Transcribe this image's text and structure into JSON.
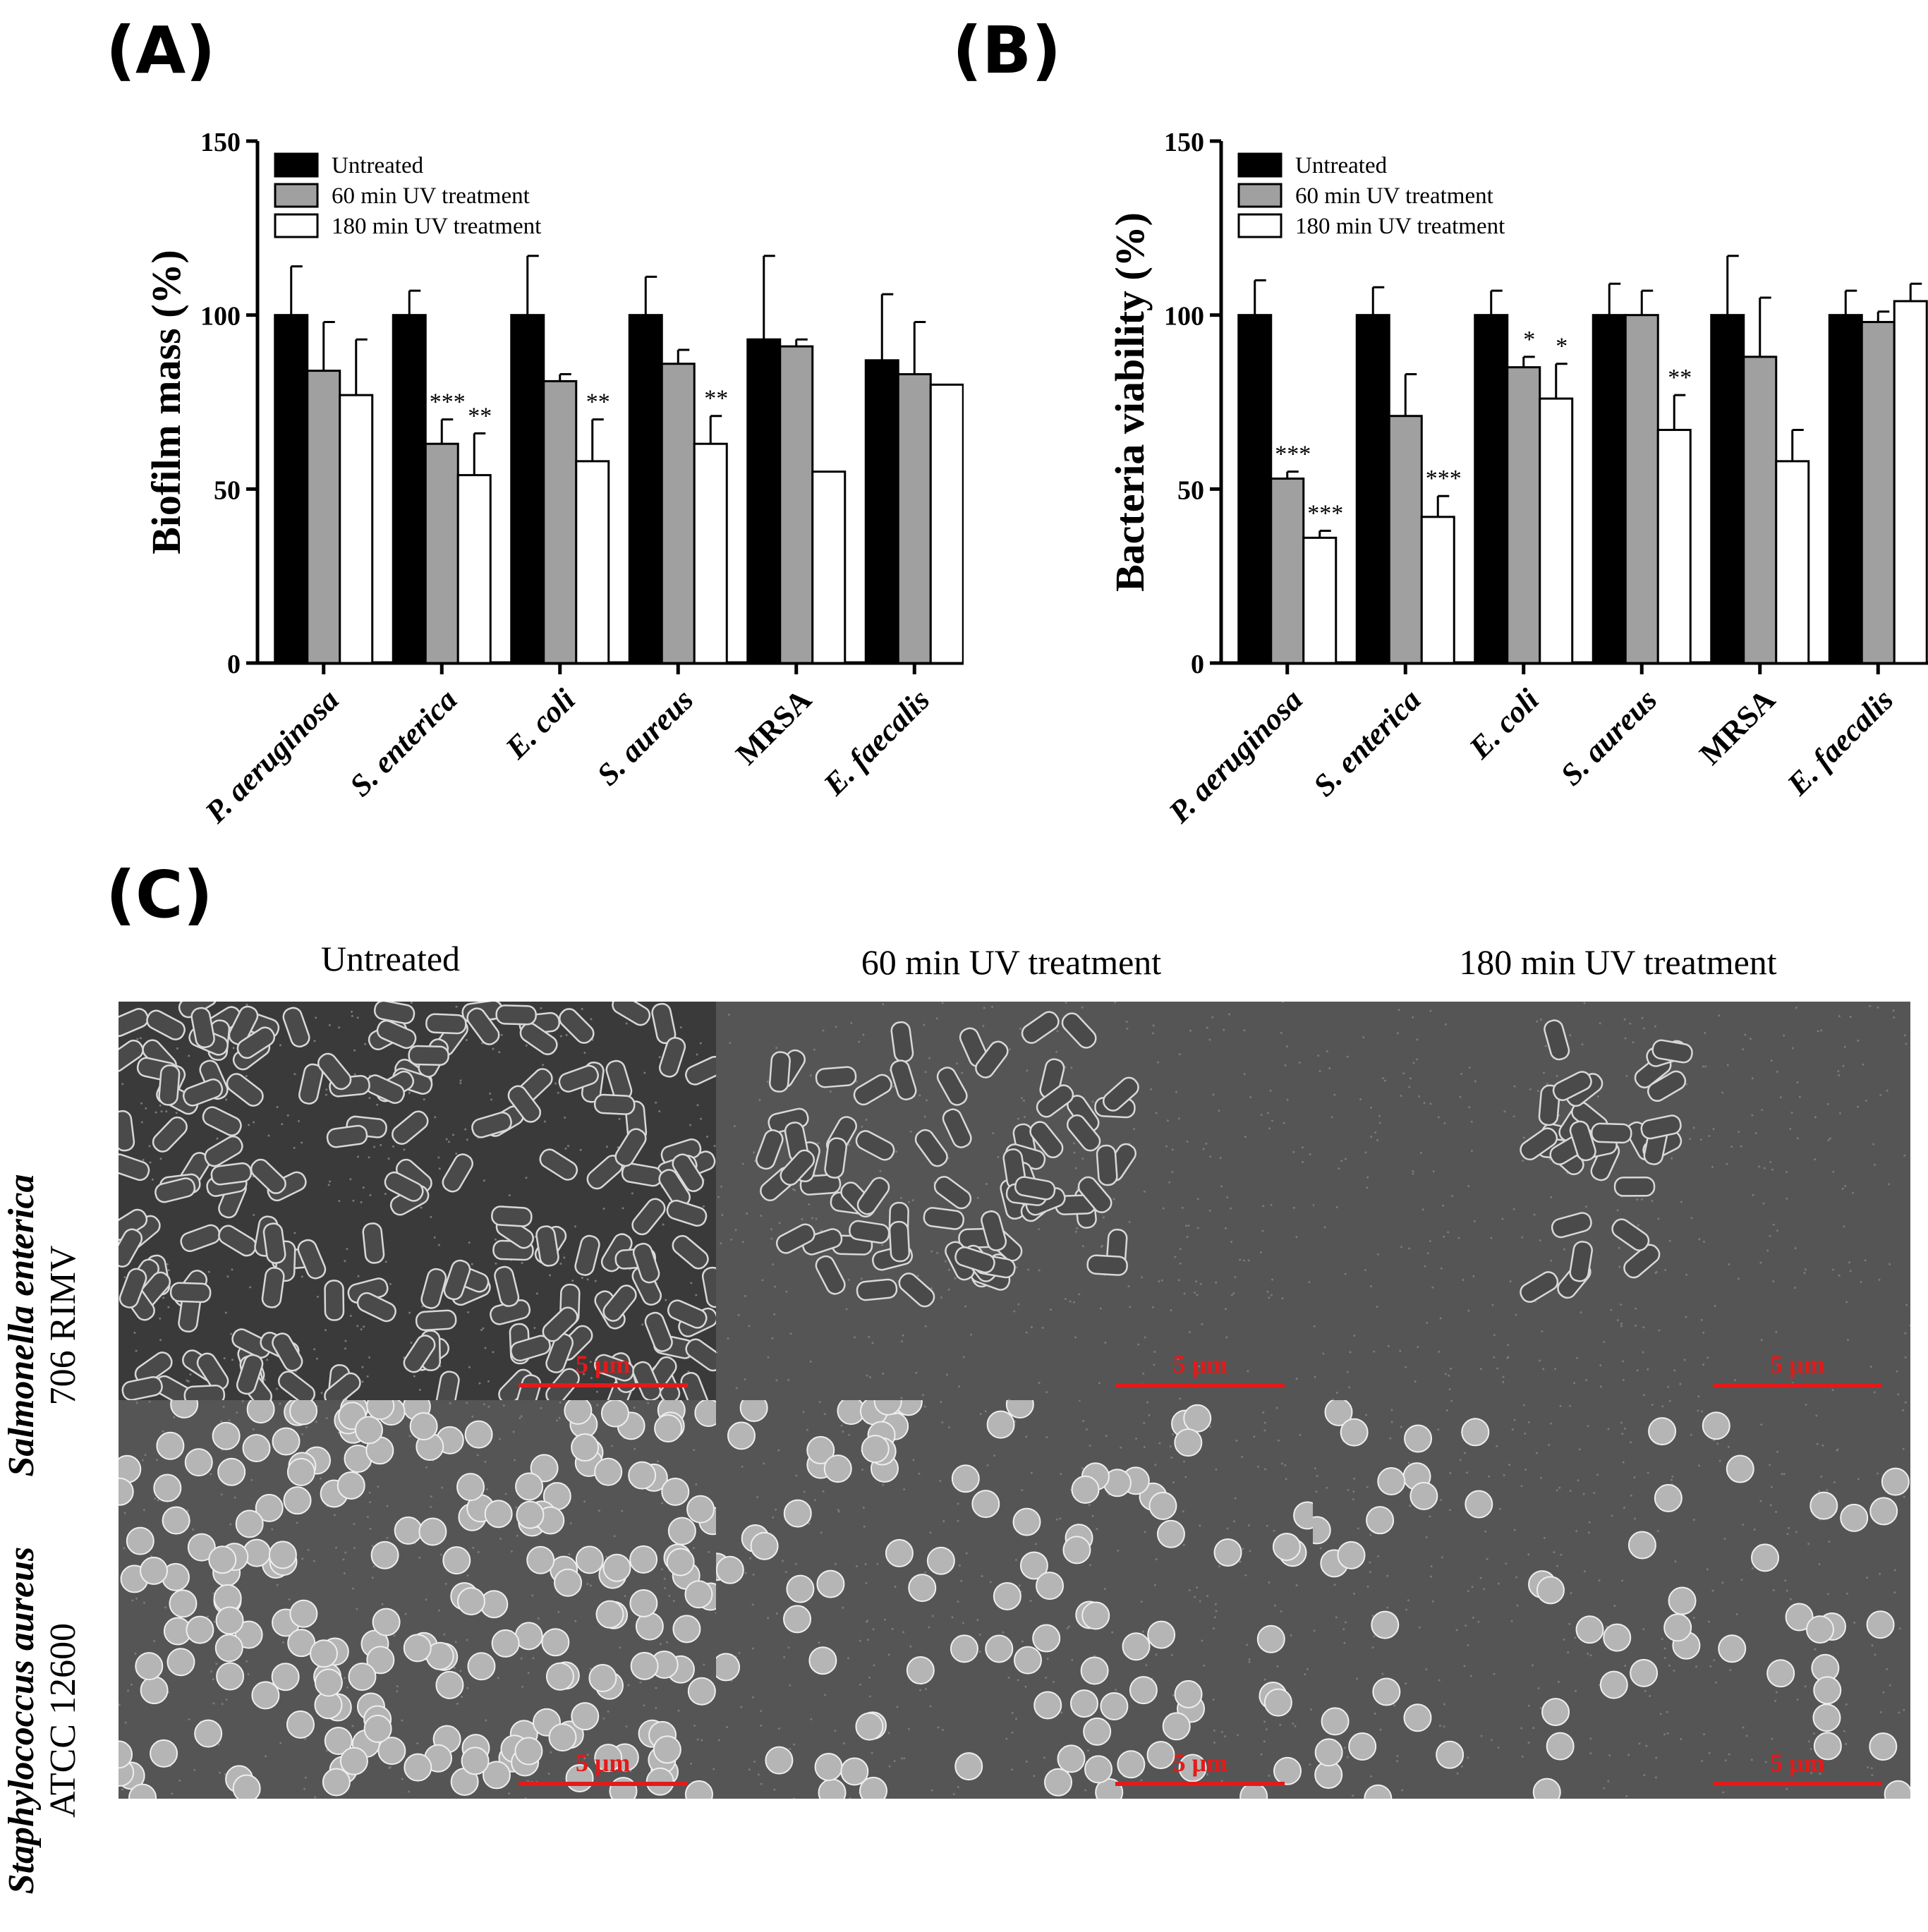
{
  "panels": {
    "a_label": "(A)",
    "b_label": "(B)",
    "c_label": "(C)"
  },
  "chart_data": [
    {
      "type": "bar",
      "title": "",
      "ylabel": "Biofilm mass (%)",
      "xlabel": "",
      "ylim": [
        0,
        150
      ],
      "yticks": [
        0,
        50,
        100,
        150
      ],
      "categories": [
        "P. aeruginosa",
        "S. enterica",
        "E. coli",
        "S. aureus",
        "MRSA",
        "E. faecalis"
      ],
      "legend_position": "top-left",
      "series": [
        {
          "name": "Untreated",
          "color": "#000000",
          "values": [
            100,
            100,
            100,
            100,
            93,
            87
          ],
          "errors": [
            14,
            7,
            17,
            11,
            24,
            19
          ]
        },
        {
          "name": "60 min UV treatment",
          "color": "#a0a0a0",
          "values": [
            84,
            63,
            81,
            86,
            91,
            83
          ],
          "errors": [
            14,
            7,
            2,
            4,
            2,
            15
          ]
        },
        {
          "name": "180 min UV treatment",
          "color": "#ffffff",
          "values": [
            77,
            54,
            58,
            63,
            55,
            80
          ],
          "errors": [
            16,
            12,
            12,
            8,
            0,
            0
          ]
        }
      ],
      "annotations": [
        {
          "category": "S. enterica",
          "series": 1,
          "text": "***"
        },
        {
          "category": "S. enterica",
          "series": 2,
          "text": "**"
        },
        {
          "category": "E. coli",
          "series": 2,
          "text": "**"
        },
        {
          "category": "S. aureus",
          "series": 2,
          "text": "**"
        }
      ]
    },
    {
      "type": "bar",
      "title": "",
      "ylabel": "Bacteria viability (%)",
      "xlabel": "",
      "ylim": [
        0,
        150
      ],
      "yticks": [
        0,
        50,
        100,
        150
      ],
      "categories": [
        "P. aeruginosa",
        "S. enterica",
        "E. coli",
        "S. aureus",
        "MRSA",
        "E. faecalis"
      ],
      "legend_position": "top-left",
      "series": [
        {
          "name": "Untreated",
          "color": "#000000",
          "values": [
            100,
            100,
            100,
            100,
            100,
            100
          ],
          "errors": [
            10,
            8,
            7,
            9,
            17,
            7
          ]
        },
        {
          "name": "60 min UV treatment",
          "color": "#a0a0a0",
          "values": [
            53,
            71,
            85,
            100,
            88,
            98
          ],
          "errors": [
            2,
            12,
            3,
            7,
            17,
            3
          ]
        },
        {
          "name": "180 min UV treatment",
          "color": "#ffffff",
          "values": [
            36,
            42,
            76,
            67,
            58,
            104
          ],
          "errors": [
            2,
            6,
            10,
            10,
            9,
            5
          ]
        }
      ],
      "annotations": [
        {
          "category": "P. aeruginosa",
          "series": 1,
          "text": "***"
        },
        {
          "category": "P. aeruginosa",
          "series": 2,
          "text": "***"
        },
        {
          "category": "S. enterica",
          "series": 2,
          "text": "***"
        },
        {
          "category": "E. coli",
          "series": 1,
          "text": "*"
        },
        {
          "category": "E. coli",
          "series": 2,
          "text": "*"
        },
        {
          "category": "S. aureus",
          "series": 2,
          "text": "**"
        }
      ]
    }
  ],
  "sem": {
    "columns": [
      "Untreated",
      "60 min UV treatment",
      "180 min UV treatment"
    ],
    "rows": [
      {
        "species": "Salmonella enterica",
        "strain": "706 RIMV"
      },
      {
        "species": "Staphylococcus aureus",
        "strain": "ATCC 12600"
      }
    ],
    "scale_label": "5 μm"
  }
}
